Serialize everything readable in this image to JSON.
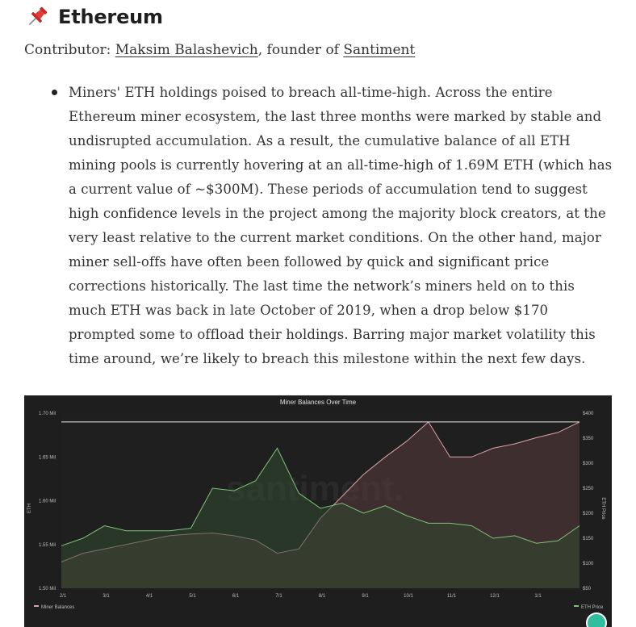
{
  "heading": {
    "title": "Ethereum",
    "icon": "pushpin-icon"
  },
  "contributor": {
    "prefix": "Contributor: ",
    "name": "Maksim Balashevich",
    "middle": ", founder of ",
    "org": "Santiment"
  },
  "bullets": [
    "Miners' ETH holdings poised to breach all-time-high. Across the entire Ethereum miner ecosystem, the last three months were marked by stable and undisrupted accumulation. As a result, the cumulative balance of all ETH mining pools is currently hovering at an all-time-high of 1.69M ETH (which has a current value of ~$300M). These periods of accumulation tend to suggest high confidence levels in the project among the majority block creators, at the very least relative to the current market conditions. On the other hand, major miner sell-offs have often been followed by quick and significant price corrections historically. The last time the network’s miners held on to this much ETH was back in late October of 2019, when a drop below $170 prompted some to offload their holdings. Barring major market volatility this time around, we’re likely to breach this milestone within the next few days."
  ],
  "chart_data": {
    "type": "area",
    "title": "Miner Balances Over Time",
    "watermark": "santiment.",
    "ylabel_left": "ETH",
    "ylabel_right": "ETH Price",
    "yticks_left": [
      "1.70 Mil",
      "1.65 Mil",
      "1.60 Mil",
      "1.55 Mil",
      "1.50 Mil"
    ],
    "yticks_right": [
      "$400",
      "$350",
      "$300",
      "$250",
      "$200",
      "$150",
      "$100",
      "$50"
    ],
    "xticks": [
      "2/1",
      "3/1",
      "4/1",
      "5/1",
      "6/1",
      "7/1",
      "8/1",
      "9/1",
      "10/1",
      "11/1",
      "12/1",
      "1/1"
    ],
    "ylim_left": [
      1500000,
      1700000
    ],
    "ylim_right": [
      50,
      400
    ],
    "reference_line": 1690000,
    "legend_left": "Miner Balances",
    "legend_right": "ETH Price",
    "series": [
      {
        "name": "Miner Balances",
        "color": "#d9a3a8",
        "fill": "#5a3a3d",
        "axis": "left",
        "x": [
          0,
          0.5,
          1,
          1.5,
          2,
          2.5,
          3,
          3.5,
          4,
          4.5,
          5,
          5.5,
          6,
          6.5,
          7,
          7.5,
          8,
          8.5,
          9,
          9.5,
          10,
          10.5,
          11,
          11.5,
          12
        ],
        "values": [
          1530000,
          1540000,
          1545000,
          1550000,
          1555000,
          1560000,
          1562000,
          1563000,
          1560000,
          1555000,
          1540000,
          1545000,
          1580000,
          1605000,
          1630000,
          1650000,
          1668000,
          1690000,
          1650000,
          1650000,
          1660000,
          1665000,
          1672000,
          1678000,
          1690000
        ]
      },
      {
        "name": "ETH Price",
        "color": "#7fc27a",
        "fill": "#2f4a2f",
        "axis": "right",
        "x": [
          0,
          0.5,
          1,
          1.5,
          2,
          2.5,
          3,
          3.5,
          4,
          4.5,
          5,
          5.5,
          6,
          6.5,
          7,
          7.5,
          8,
          8.5,
          9,
          9.5,
          10,
          10.5,
          11,
          11.5,
          12
        ],
        "values": [
          135,
          150,
          175,
          165,
          165,
          165,
          170,
          250,
          245,
          265,
          330,
          240,
          210,
          220,
          200,
          215,
          195,
          180,
          180,
          175,
          150,
          155,
          140,
          145,
          175
        ]
      }
    ]
  }
}
